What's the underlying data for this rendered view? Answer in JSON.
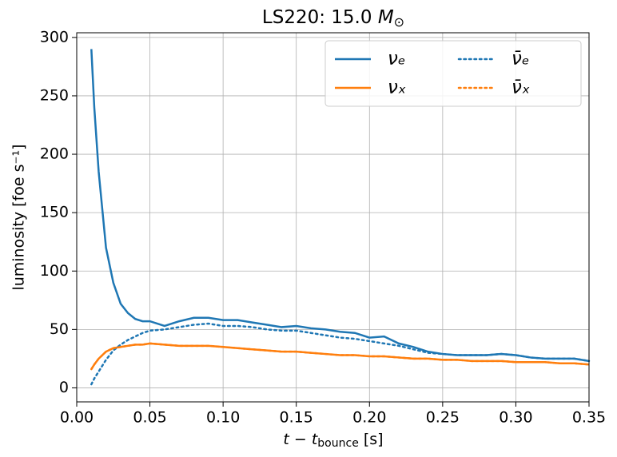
{
  "chart_data": {
    "type": "line",
    "title": "LS220: 15.0",
    "title_mass": "M",
    "title_mass_subscript": "⊙",
    "x_label": "t − t",
    "x_label_subscript": "bounce",
    "x_label_unit": "[s]",
    "y_label": "luminosity [foe s⁻¹]",
    "xlim": [
      0,
      0.35
    ],
    "ylim": [
      -12,
      304
    ],
    "xticks": [
      {
        "value": 0,
        "label": "0.00"
      },
      0.05,
      {
        "value": 0.1,
        "label": "0.10"
      },
      0.15,
      {
        "value": 0.2,
        "label": "0.20"
      },
      0.25,
      {
        "value": 0.3,
        "label": "0.30"
      },
      0.35
    ],
    "yticks": [
      0,
      50,
      100,
      150,
      200,
      250,
      300
    ],
    "grid": true,
    "legend": "upper right",
    "legend_columns": 2,
    "x": [
      0.01,
      0.012,
      0.015,
      0.02,
      0.025,
      0.03,
      0.035,
      0.04,
      0.045,
      0.05,
      0.06,
      0.07,
      0.08,
      0.09,
      0.1,
      0.11,
      0.12,
      0.13,
      0.14,
      0.15,
      0.16,
      0.17,
      0.18,
      0.19,
      0.2,
      0.21,
      0.22,
      0.23,
      0.24,
      0.25,
      0.26,
      0.27,
      0.28,
      0.29,
      0.3,
      0.31,
      0.32,
      0.33,
      0.34,
      0.35
    ],
    "series": [
      {
        "name": "νₑ",
        "color": "#1f77b4",
        "linestyle": "solid",
        "values": [
          290,
          240,
          185,
          120,
          90,
          72,
          64,
          59,
          57,
          57,
          53,
          57,
          60,
          60,
          58,
          58,
          56,
          54,
          52,
          53,
          51,
          50,
          48,
          47,
          43,
          44,
          38,
          35,
          31,
          29,
          28,
          28,
          28,
          29,
          28,
          26,
          25,
          25,
          25,
          23
        ]
      },
      {
        "name": "νₓ",
        "color": "#ff7f0e",
        "linestyle": "solid",
        "values": [
          16,
          20,
          25,
          31,
          34,
          35,
          36,
          37,
          37,
          38,
          37,
          36,
          36,
          36,
          35,
          34,
          33,
          32,
          31,
          31,
          30,
          29,
          28,
          28,
          27,
          27,
          26,
          25,
          25,
          24,
          24,
          23,
          23,
          23,
          22,
          22,
          22,
          21,
          21,
          20
        ]
      },
      {
        "name": "ν̄ₑ",
        "color": "#1f77b4",
        "linestyle": "dotted",
        "values": [
          3,
          8,
          14,
          24,
          32,
          37,
          41,
          44,
          47,
          49,
          50,
          52,
          54,
          55,
          53,
          53,
          52,
          50,
          49,
          49,
          47,
          45,
          43,
          42,
          40,
          38,
          36,
          33,
          30,
          29,
          28,
          28,
          28,
          29,
          28,
          26,
          25,
          25,
          25,
          23
        ]
      },
      {
        "name": "ν̄ₓ",
        "color": "#ff7f0e",
        "linestyle": "dotted",
        "values": [
          16,
          20,
          25,
          31,
          34,
          35,
          36,
          37,
          37,
          38,
          37,
          36,
          36,
          36,
          35,
          34,
          33,
          32,
          31,
          31,
          30,
          29,
          28,
          28,
          27,
          27,
          26,
          25,
          25,
          24,
          24,
          23,
          23,
          23,
          22,
          22,
          22,
          21,
          21,
          20
        ]
      }
    ]
  }
}
